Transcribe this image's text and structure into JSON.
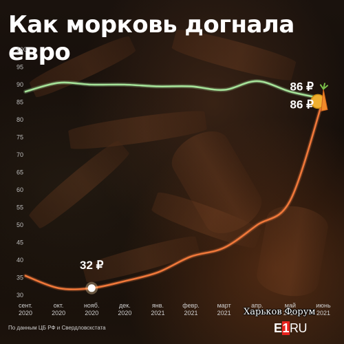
{
  "title": "Как морковь догнала евро",
  "source": "По данным ЦБ РФ и Свердловскстата",
  "logo": {
    "main": "E",
    "one": "1",
    "suffix": "RU"
  },
  "watermark": "Харьков Форум",
  "colors": {
    "euro": "#a6e39a",
    "carrot": "#f0783a",
    "carrot_glow": "#ff9a55",
    "marker": "#ffffff",
    "text": "#ffffff"
  },
  "chart_data": {
    "type": "line",
    "x": [
      "2020-09",
      "2020-10",
      "2020-11",
      "2020-12",
      "2021-01",
      "2021-02",
      "2021-03",
      "2021-04",
      "2021-05",
      "2021-06"
    ],
    "tick_labels": [
      {
        "month": "сент.",
        "year": "2020"
      },
      {
        "month": "окт.",
        "year": "2020"
      },
      {
        "month": "нояб.",
        "year": "2020"
      },
      {
        "month": "дек.",
        "year": "2020"
      },
      {
        "month": "янв.",
        "year": "2021"
      },
      {
        "month": "февр.",
        "year": "2021"
      },
      {
        "month": "март",
        "year": "2021"
      },
      {
        "month": "апр.",
        "year": "2021"
      },
      {
        "month": "май",
        "year": "2021"
      },
      {
        "month": "июнь",
        "year": "2021"
      }
    ],
    "ylim": [
      30,
      100
    ],
    "yticks": [
      30,
      35,
      40,
      45,
      50,
      55,
      60,
      65,
      70,
      75,
      80,
      85,
      90,
      95,
      100
    ],
    "grid": false,
    "series": [
      {
        "key": "euro",
        "values": [
          88,
          90.5,
          90,
          90,
          89.5,
          89.5,
          88.5,
          91,
          88,
          86
        ]
      },
      {
        "key": "carrot",
        "values": [
          35.5,
          32,
          32,
          34,
          36.5,
          41,
          43.5,
          50,
          57,
          86
        ]
      }
    ],
    "annotations": [
      {
        "text": "86 ₽",
        "series": "euro",
        "x_index": 9,
        "y": 86
      },
      {
        "text": "86 ₽",
        "series": "carrot",
        "x_index": 9,
        "y": 86
      },
      {
        "text": "32 ₽",
        "series": "carrot",
        "x_index": 2,
        "y": 32
      }
    ]
  }
}
